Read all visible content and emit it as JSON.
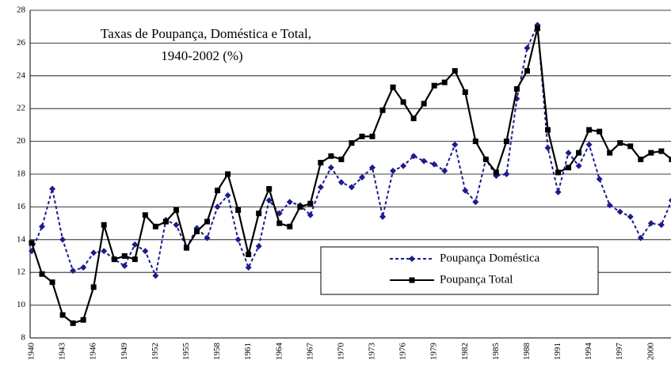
{
  "chart_data": {
    "type": "line",
    "title": [
      "Taxas de Poupança, Doméstica e Total,",
      "1940-2002 (%)"
    ],
    "categories": [
      "1940",
      null,
      null,
      "1943",
      null,
      null,
      "1946",
      null,
      null,
      "1949",
      null,
      null,
      "1952",
      null,
      null,
      "1955",
      null,
      null,
      "1958",
      null,
      null,
      "1961",
      null,
      null,
      "1964",
      null,
      null,
      "1967",
      null,
      null,
      "1970",
      null,
      null,
      "1973",
      null,
      null,
      "1976",
      null,
      null,
      "1979",
      null,
      null,
      "1982",
      null,
      null,
      "1985",
      null,
      null,
      "1988",
      null,
      null,
      "1991",
      null,
      null,
      "1994",
      null,
      null,
      "1997",
      null,
      null,
      "2000",
      null,
      null
    ],
    "series": [
      {
        "name": "Poupança Doméstica",
        "color": "#1c1c8f",
        "dash": true,
        "marker": "diamond",
        "values": [
          13.3,
          14.8,
          17.1,
          14.0,
          12.1,
          12.3,
          13.2,
          13.3,
          12.8,
          12.4,
          13.7,
          13.3,
          11.8,
          15.2,
          14.9,
          13.5,
          14.7,
          14.1,
          16.0,
          16.7,
          14.0,
          12.3,
          13.6,
          16.4,
          15.6,
          16.3,
          16.1,
          15.5,
          17.2,
          18.4,
          17.5,
          17.2,
          17.8,
          18.4,
          15.4,
          18.2,
          18.5,
          19.1,
          18.8,
          18.6,
          18.2,
          19.8,
          17.0,
          16.3,
          18.9,
          17.9,
          18.0,
          22.6,
          25.7,
          27.1,
          19.6,
          16.9,
          19.3,
          18.5,
          19.8,
          17.7,
          16.1,
          15.7,
          15.4,
          14.1,
          15.0,
          14.9,
          16.4
        ]
      },
      {
        "name": "Poupança Total",
        "color": "#000000",
        "dash": false,
        "marker": "square",
        "values": [
          13.8,
          11.9,
          11.4,
          9.4,
          8.9,
          9.1,
          11.1,
          14.9,
          12.8,
          13.0,
          12.8,
          15.5,
          14.8,
          15.1,
          15.8,
          13.5,
          14.5,
          15.1,
          17.0,
          18.0,
          15.8,
          13.1,
          15.6,
          17.1,
          15.0,
          14.8,
          16.0,
          16.2,
          18.7,
          19.1,
          18.9,
          19.9,
          20.3,
          20.3,
          21.9,
          23.3,
          22.4,
          21.4,
          22.3,
          23.4,
          23.6,
          24.3,
          23.0,
          20.0,
          18.9,
          18.1,
          20.0,
          23.2,
          24.3,
          26.9,
          20.7,
          18.1,
          18.4,
          19.3,
          20.7,
          20.6,
          19.3,
          19.9,
          19.7,
          18.9,
          19.3,
          19.4,
          18.9
        ]
      }
    ],
    "ylim": [
      8,
      28
    ],
    "yticks": [
      8,
      10,
      12,
      14,
      16,
      18,
      20,
      22,
      24,
      26,
      28
    ],
    "grid": true
  }
}
